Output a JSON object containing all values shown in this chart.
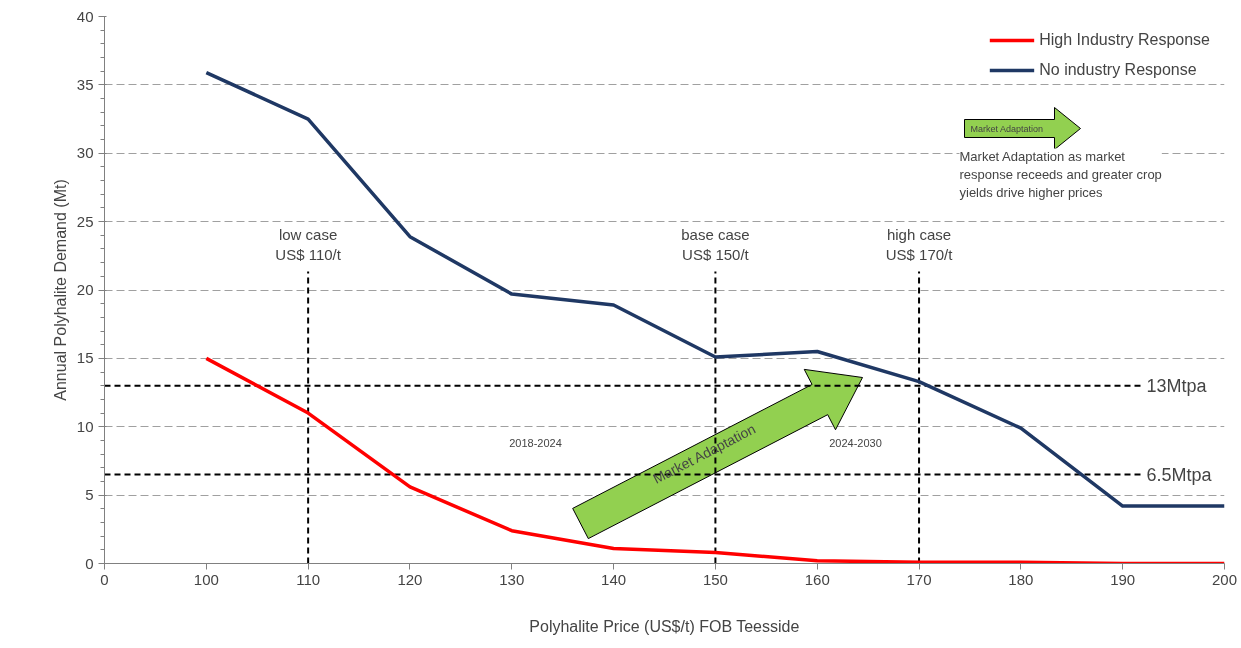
{
  "chart_data": {
    "type": "line",
    "xlabel": "Polyhalite Price (US$/t) FOB Teesside",
    "ylabel": "Annual Polyhalite Demand (Mt)",
    "categories": [
      "0",
      "100",
      "110",
      "120",
      "130",
      "140",
      "150",
      "160",
      "170",
      "180",
      "190",
      "200"
    ],
    "series": [
      {
        "name": "High Industry Response",
        "color": "#ff0000",
        "values": [
          null,
          15,
          11.0,
          5.6,
          2.4,
          1.1,
          0.8,
          0.2,
          0.1,
          0.1,
          0,
          0
        ]
      },
      {
        "name": "No industry Response",
        "color": "#1f3864",
        "values": [
          null,
          35.9,
          32.5,
          23.9,
          19.7,
          18.9,
          15.1,
          15.5,
          13.3,
          9.9,
          4.2,
          4.2
        ]
      }
    ],
    "ylim": [
      0,
      40
    ],
    "yticks": [
      0,
      5,
      10,
      15,
      20,
      25,
      30,
      35,
      40
    ],
    "grid": "y",
    "legend": "top right",
    "marker": "none",
    "line_style": "solid",
    "ref_lines": [
      {
        "axis": "y",
        "value": 13,
        "label": "13Mtpa",
        "color": "#000000",
        "line_style": "dashed"
      },
      {
        "axis": "y",
        "value": 6.5,
        "label": "6.5Mtpa",
        "color": "#000000",
        "line_style": "dashed"
      },
      {
        "axis": "x",
        "value": "110",
        "label": "low case\nUS$ 110/t",
        "color": "#000000",
        "line_style": "dashed"
      },
      {
        "axis": "x",
        "value": "150",
        "label": "base case\nUS$ 150/t",
        "color": "#000000",
        "line_style": "dashed"
      },
      {
        "axis": "x",
        "value": "170",
        "label": "high case\nUS$ 170/t",
        "color": "#000000",
        "line_style": "dashed"
      }
    ],
    "annotations": [
      "2018-2024",
      "2024-2030",
      "Market Adaptation",
      "Market Adaptation",
      "Market Adaptation as market\nresponse receeds and greater crop\nyields drive higher prices"
    ]
  }
}
